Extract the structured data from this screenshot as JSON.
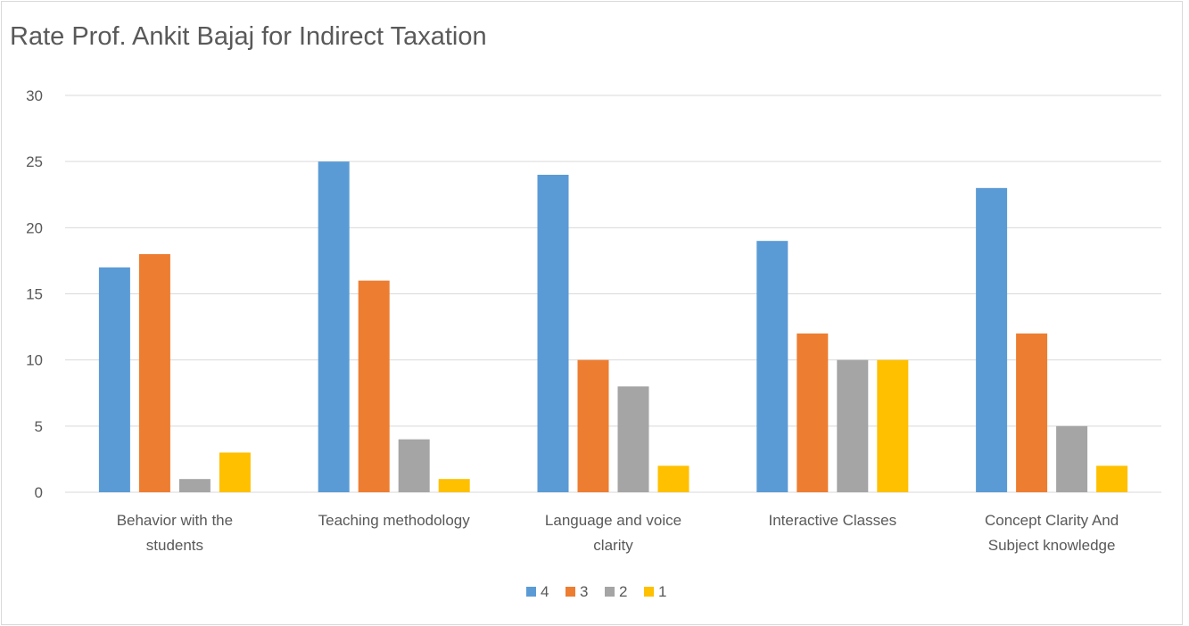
{
  "chart_data": {
    "type": "bar",
    "title": "Rate Prof. Ankit Bajaj for Indirect Taxation",
    "categories": [
      [
        "Behavior with the",
        "students"
      ],
      [
        "Teaching methodology"
      ],
      [
        "Language and voice",
        "clarity"
      ],
      [
        "Interactive Classes"
      ],
      [
        "Concept Clarity And",
        "Subject knowledge"
      ]
    ],
    "series": [
      {
        "name": "4",
        "color": "#5b9bd5",
        "values": [
          17,
          25,
          24,
          19,
          23
        ]
      },
      {
        "name": "3",
        "color": "#ed7d31",
        "values": [
          18,
          16,
          10,
          12,
          12
        ]
      },
      {
        "name": "2",
        "color": "#a5a5a5",
        "values": [
          1,
          4,
          8,
          10,
          5
        ]
      },
      {
        "name": "1",
        "color": "#ffc000",
        "values": [
          3,
          1,
          2,
          10,
          2
        ]
      }
    ],
    "ylim": [
      0,
      30
    ],
    "yticks": [
      0,
      5,
      10,
      15,
      20,
      25,
      30
    ],
    "grid": true,
    "legend_position": "bottom"
  }
}
